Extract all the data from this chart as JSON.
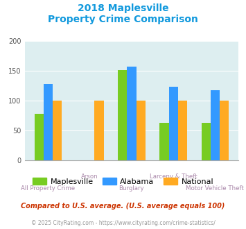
{
  "title_line1": "2018 Maplesville",
  "title_line2": "Property Crime Comparison",
  "categories": [
    "All Property Crime",
    "Arson",
    "Burglary",
    "Larceny & Theft",
    "Motor Vehicle Theft"
  ],
  "maplesville": [
    78,
    0,
    152,
    63,
    63
  ],
  "alabama": [
    128,
    0,
    157,
    123,
    118
  ],
  "national": [
    100,
    100,
    100,
    100,
    100
  ],
  "color_maplesville": "#77cc22",
  "color_alabama": "#3399ff",
  "color_national": "#ffaa22",
  "ylim": [
    0,
    200
  ],
  "yticks": [
    0,
    50,
    100,
    150,
    200
  ],
  "legend_labels": [
    "Maplesville",
    "Alabama",
    "National"
  ],
  "footnote1": "Compared to U.S. average. (U.S. average equals 100)",
  "footnote2": "© 2025 CityRating.com - https://www.cityrating.com/crime-statistics/",
  "bg_color": "#ddeef0",
  "title_color": "#1199dd",
  "axis_label_color": "#aa88aa",
  "footnote1_color": "#cc3300",
  "footnote2_color": "#999999"
}
